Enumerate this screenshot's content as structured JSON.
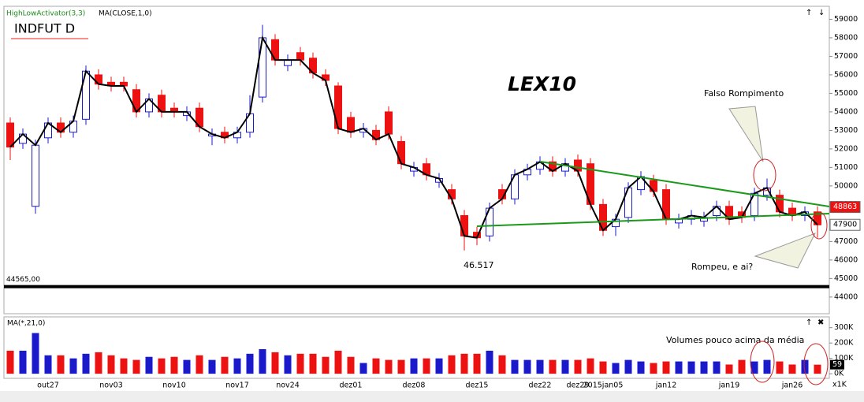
{
  "chart_data": {
    "type": "candlestick",
    "title": "INDFUT D",
    "indicators": [
      "HighLowActivator(3,3)",
      "MA(CLOSE,1,0)"
    ],
    "volume_indicator": "MA(*,21,0)",
    "volume_unit": "x1K",
    "annotations": [
      "LEX10",
      "Falso Rompimento",
      "46.517",
      "Rompeu, e ai?",
      "Volumes pouco acima da média"
    ],
    "categories": [
      null,
      null,
      null,
      "out27",
      null,
      null,
      null,
      null,
      "nov03",
      null,
      null,
      null,
      null,
      "nov10",
      null,
      null,
      null,
      null,
      "nov17",
      null,
      null,
      null,
      "nov24",
      null,
      null,
      null,
      null,
      "dez01",
      null,
      null,
      null,
      null,
      "dez08",
      null,
      null,
      null,
      null,
      "dez15",
      null,
      null,
      null,
      null,
      "dez22",
      null,
      null,
      "dez29",
      null,
      "2015jan05",
      null,
      null,
      null,
      null,
      "jan12",
      null,
      null,
      null,
      null,
      "jan19",
      null,
      null,
      null,
      null,
      "jan26",
      null,
      null
    ],
    "open": [
      53400,
      52300,
      48900,
      52600,
      53400,
      52900,
      53600,
      56000,
      55600,
      55600,
      55200,
      54000,
      54900,
      54200,
      53800,
      54200,
      52700,
      52900,
      52600,
      52900,
      54800,
      57900,
      56500,
      57200,
      56900,
      56000,
      55400,
      53700,
      52900,
      53000,
      54000,
      52400,
      50800,
      51200,
      50200,
      49800,
      48400,
      47500,
      47300,
      49800,
      49300,
      50600,
      50900,
      51300,
      50800,
      51400,
      51200,
      49000,
      47800,
      48300,
      49800,
      50300,
      49800,
      48000,
      48200,
      48100,
      48400,
      48900,
      48600,
      48400,
      49500,
      49500,
      48800,
      48400,
      48600
    ],
    "high": [
      53700,
      53100,
      52500,
      53700,
      53700,
      53800,
      56500,
      56300,
      55900,
      55900,
      55500,
      55000,
      55200,
      54500,
      54300,
      54500,
      53100,
      53200,
      53200,
      54900,
      58700,
      58200,
      57100,
      57500,
      57200,
      56300,
      55600,
      54000,
      53400,
      53300,
      54300,
      52700,
      51300,
      51500,
      50700,
      50100,
      48700,
      47800,
      49100,
      50100,
      50900,
      51200,
      51600,
      51600,
      51500,
      51700,
      51500,
      49300,
      48500,
      50200,
      50800,
      50600,
      50100,
      48500,
      48700,
      48600,
      49200,
      49200,
      48900,
      49900,
      50400,
      49800,
      49100,
      48900,
      48900
    ],
    "low": [
      51400,
      52000,
      48500,
      52300,
      52600,
      52600,
      53300,
      55200,
      55100,
      55100,
      53700,
      53700,
      53700,
      53700,
      53500,
      52900,
      52200,
      52300,
      52300,
      52600,
      54500,
      56500,
      56200,
      56500,
      55800,
      55400,
      52800,
      52600,
      52600,
      52200,
      52500,
      50900,
      50500,
      50300,
      49900,
      49000,
      46517,
      46800,
      47000,
      49000,
      49000,
      50300,
      50600,
      50500,
      50500,
      50500,
      48700,
      47300,
      47300,
      48000,
      49500,
      49400,
      47900,
      47700,
      47900,
      47800,
      48100,
      47900,
      48000,
      48100,
      49200,
      48300,
      48100,
      48100,
      47200
    ],
    "close": [
      52100,
      52800,
      52200,
      53400,
      52900,
      53500,
      56200,
      55500,
      55400,
      55400,
      54000,
      54700,
      54000,
      54000,
      54000,
      53200,
      52800,
      52600,
      52900,
      53900,
      58000,
      56800,
      56800,
      56800,
      56100,
      55700,
      53100,
      52900,
      53100,
      52500,
      52800,
      51200,
      51000,
      50600,
      50400,
      49300,
      47300,
      47200,
      48800,
      49300,
      50600,
      50900,
      51300,
      50800,
      51200,
      50800,
      49000,
      47600,
      48200,
      49900,
      50500,
      49700,
      48200,
      48200,
      48400,
      48300,
      48900,
      48200,
      48300,
      49600,
      49900,
      48600,
      48400,
      48600,
      47900
    ],
    "volume": [
      150000,
      150000,
      265000,
      120000,
      120000,
      100000,
      130000,
      140000,
      120000,
      100000,
      90000,
      110000,
      100000,
      110000,
      90000,
      120000,
      90000,
      110000,
      100000,
      130000,
      160000,
      140000,
      120000,
      130000,
      130000,
      110000,
      150000,
      110000,
      70000,
      100000,
      90000,
      90000,
      100000,
      100000,
      100000,
      120000,
      130000,
      130000,
      150000,
      120000,
      90000,
      90000,
      90000,
      90000,
      90000,
      90000,
      100000,
      80000,
      70000,
      90000,
      80000,
      70000,
      80000,
      80000,
      80000,
      80000,
      80000,
      60000,
      90000,
      80000,
      90000,
      80000,
      60000,
      90000,
      59000
    ],
    "up_color": "#1a1acc",
    "down_color": "#ee1111",
    "line_color": "#000000",
    "ylim": [
      43100,
      59700
    ],
    "yticks": [
      44000,
      45000,
      46000,
      47000,
      48000,
      49000,
      50000,
      51000,
      52000,
      53000,
      54000,
      55000,
      56000,
      57000,
      58000,
      59000
    ],
    "hline": {
      "value": 44565,
      "label": "44565,00"
    },
    "price_markers": [
      {
        "value": 48863,
        "color": "#ee1111"
      },
      {
        "value": 47900,
        "color": "#ffffff"
      }
    ],
    "vlim": [
      -30000,
      360000
    ],
    "vticks": [
      {
        "value": 0,
        "label": "0K"
      },
      {
        "value": 100000,
        "label": "100K"
      },
      {
        "value": 200000,
        "label": "200K"
      },
      {
        "value": 300000,
        "label": "300K"
      }
    ],
    "volume_marker": {
      "value": 59000,
      "label": "59"
    }
  }
}
